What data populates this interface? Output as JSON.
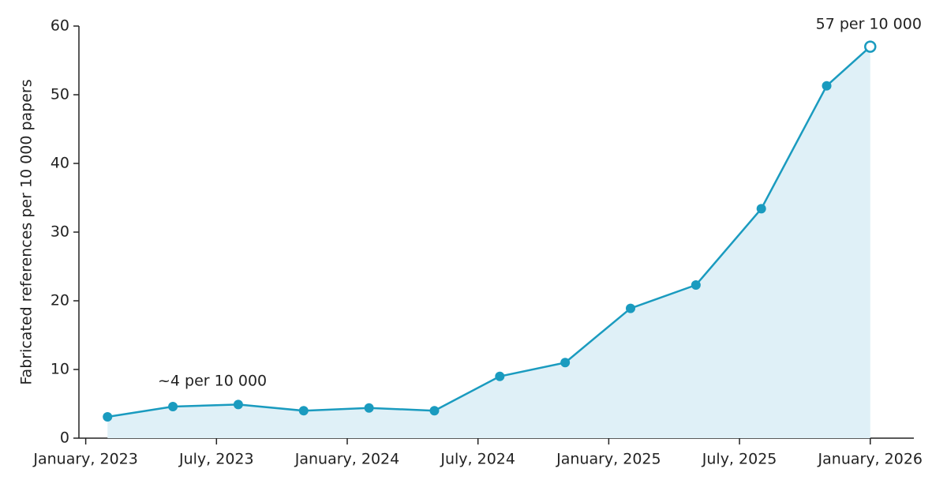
{
  "chart_data": {
    "type": "line",
    "y_label": "Fabricated references per 10 000 papers",
    "x": [
      "2023-02",
      "2023-05",
      "2023-08",
      "2023-11",
      "2024-02",
      "2024-05",
      "2024-08",
      "2024-11",
      "2025-02",
      "2025-05",
      "2025-08",
      "2025-11",
      "2026-01"
    ],
    "series": [
      {
        "name": "Fabricated references",
        "color": "#1a9bbf",
        "fill": "#dff0f7",
        "values": [
          3.1,
          4.6,
          4.9,
          4.0,
          4.4,
          4.0,
          9.0,
          11.0,
          18.9,
          22.3,
          33.4,
          51.3,
          57
        ]
      }
    ],
    "xlim": [
      "2022-12",
      "2026-03"
    ],
    "xticks": [
      {
        "value": "2023-01",
        "label": "January, 2023"
      },
      {
        "value": "2023-07",
        "label": "July, 2023"
      },
      {
        "value": "2024-01",
        "label": "January, 2024"
      },
      {
        "value": "2024-07",
        "label": "July, 2024"
      },
      {
        "value": "2025-01",
        "label": "January, 2025"
      },
      {
        "value": "2025-07",
        "label": "July, 2025"
      },
      {
        "value": "2026-01",
        "label": "January, 2026"
      }
    ],
    "ylim": [
      0,
      60
    ],
    "yticks": [
      0,
      10,
      20,
      30,
      40,
      50,
      60
    ],
    "grid": false,
    "annotations": [
      "~4 per 10 000",
      "57 per 10 000"
    ]
  }
}
